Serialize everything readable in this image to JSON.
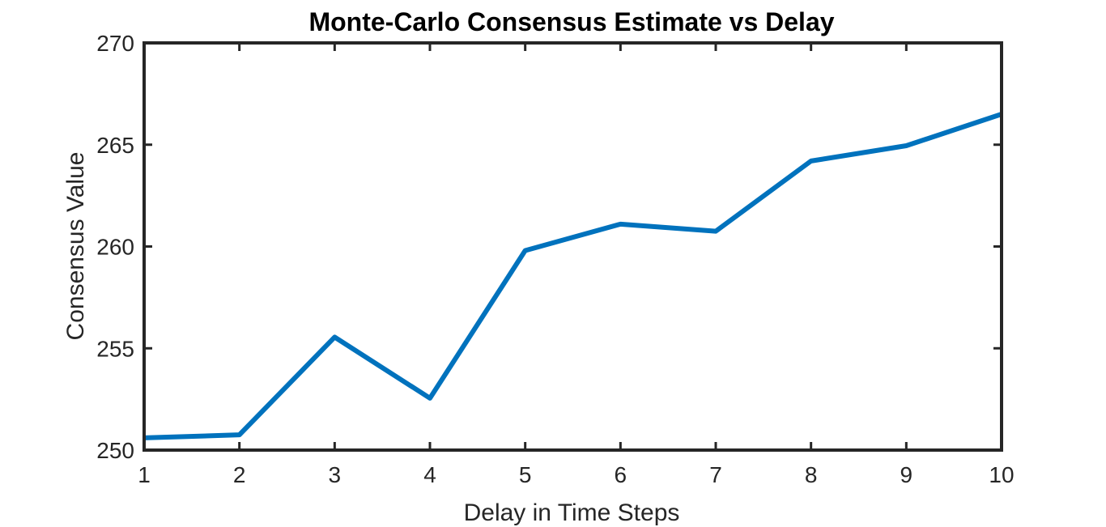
{
  "chart_data": {
    "type": "line",
    "title": "Monte-Carlo Consensus Estimate vs Delay",
    "xlabel": "Delay in Time Steps",
    "ylabel": "Consensus Value",
    "xlim": [
      1,
      10
    ],
    "ylim": [
      250,
      270
    ],
    "xticks": [
      1,
      2,
      3,
      4,
      5,
      6,
      7,
      8,
      9,
      10
    ],
    "yticks": [
      250,
      255,
      260,
      265,
      270
    ],
    "grid": false,
    "box": true,
    "series": [
      {
        "color": "#0072BD",
        "x": [
          1,
          2,
          3,
          4,
          5,
          6,
          7,
          8,
          9,
          10
        ],
        "y": [
          250.6,
          250.75,
          255.55,
          252.55,
          259.8,
          261.1,
          260.75,
          264.2,
          264.95,
          266.5
        ]
      }
    ]
  }
}
